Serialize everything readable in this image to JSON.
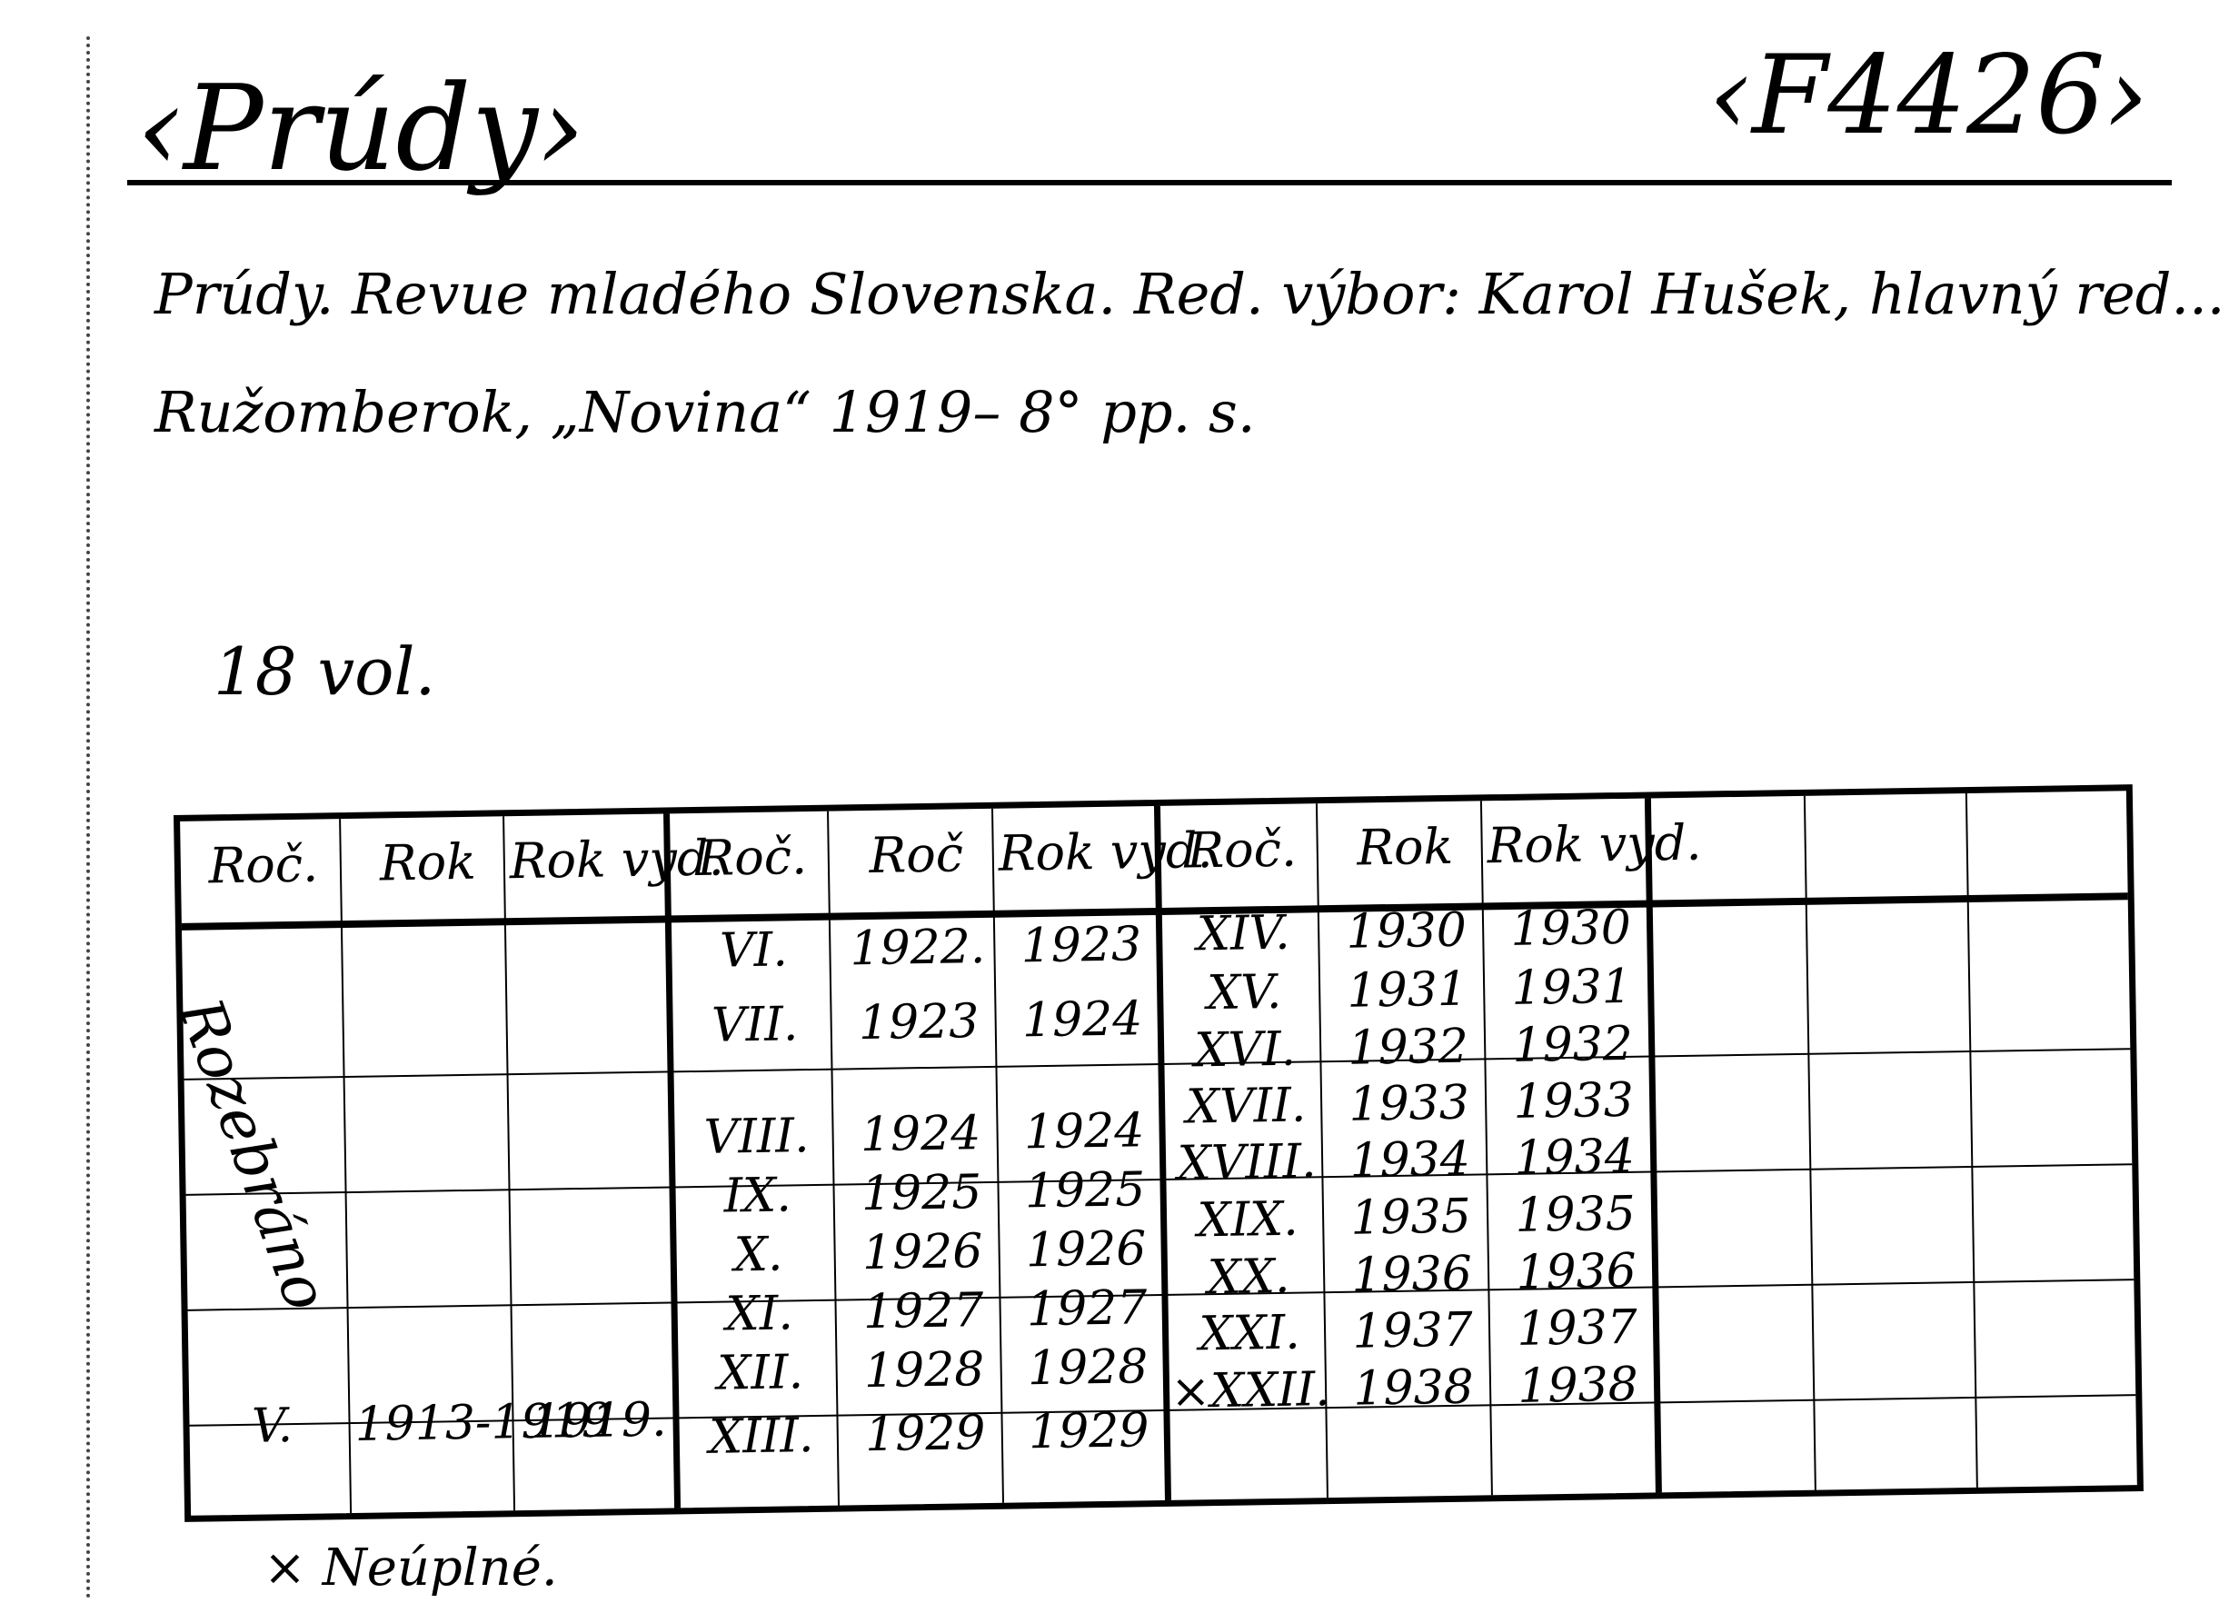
{
  "card": {
    "title": "‹Prúdy›",
    "call_number": "‹F4426›",
    "description_line1": "Prúdy. Revue mladého Slovenska. Red. výbor: Karol Hušek, hlavný red...",
    "description_line2": "Ružomberok, „Novina“ 1919– 8° pp. s.",
    "volumes": "18 vol.",
    "footnote": "× Neúplné."
  },
  "annotation": "Rozebráno",
  "table": {
    "groups": [
      {
        "headers": [
          "Roč.",
          "Rok",
          "Rok vyd."
        ],
        "rows": [
          [
            "V.",
            "1913-1919",
            "1919."
          ]
        ]
      },
      {
        "headers": [
          "Roč.",
          "Roč",
          "Rok vyd."
        ],
        "rows": [
          [
            "VI.",
            "1922.",
            "1923"
          ],
          [
            "VII.",
            "1923",
            "1924"
          ],
          [
            "VIII.",
            "1924",
            "1924"
          ],
          [
            "IX.",
            "1925",
            "1925"
          ],
          [
            "X.",
            "1926",
            "1926"
          ],
          [
            "XI.",
            "1927",
            "1927"
          ],
          [
            "XII.",
            "1928",
            "1928"
          ],
          [
            "XIII.",
            "1929",
            "1929"
          ]
        ]
      },
      {
        "headers": [
          "Roč.",
          "Rok",
          "Rok vyd."
        ],
        "rows": [
          [
            "XIV.",
            "1930",
            "1930"
          ],
          [
            "XV.",
            "1931",
            "1931"
          ],
          [
            "XVI.",
            "1932",
            "1932"
          ],
          [
            "XVII.",
            "1933",
            "1933"
          ],
          [
            "XVIII.",
            "1934",
            "1934"
          ],
          [
            "XIX.",
            "1935",
            "1935"
          ],
          [
            "XX.",
            "1936",
            "1936"
          ],
          [
            "XXI.",
            "1937",
            "1937"
          ],
          [
            "×XXII.",
            "1938",
            "1938"
          ]
        ]
      }
    ]
  }
}
